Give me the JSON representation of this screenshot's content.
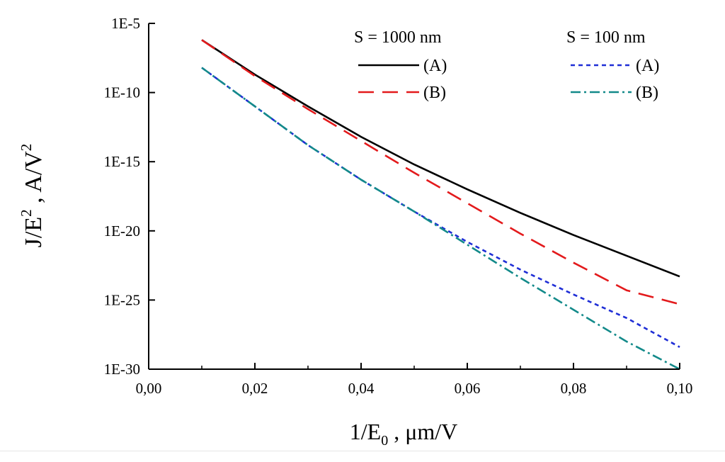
{
  "chart_data": {
    "type": "line",
    "xlabel": "1/E",
    "xlabel_sub": "0",
    "xlabel_unit": " , μm/V",
    "ylabel": "J/E",
    "ylabel_sup": "2",
    "ylabel_unit": " , A/V",
    "ylabel_unit_sup": "2",
    "xlim": [
      0.0,
      0.1
    ],
    "ylim_log10": [
      -30,
      -5
    ],
    "y_scale": "log",
    "x_ticks": [
      0.0,
      0.02,
      0.04,
      0.06,
      0.08,
      0.1
    ],
    "x_tick_labels": [
      "0,00",
      "0,02",
      "0,04",
      "0,06",
      "0,08",
      "0,10"
    ],
    "y_ticks_log10": [
      -5,
      -10,
      -15,
      -20,
      -25,
      -30
    ],
    "y_tick_labels": [
      "1E-5",
      "1E-10",
      "1E-15",
      "1E-20",
      "1E-25",
      "1E-30"
    ],
    "legend": {
      "position": "top-right",
      "group_titles": [
        "S = 1000 nm",
        "S = 100 nm"
      ],
      "entries": [
        {
          "group": "S = 1000 nm",
          "label": "(A)",
          "series": "s1000A"
        },
        {
          "group": "S = 1000 nm",
          "label": "(B)",
          "series": "s1000B"
        },
        {
          "group": "S = 100 nm",
          "label": "(A)",
          "series": "s100A"
        },
        {
          "group": "S = 100 nm",
          "label": "(B)",
          "series": "s100B"
        }
      ]
    },
    "series": [
      {
        "id": "s1000A",
        "name": "S = 1000 nm (A)",
        "color": "#000000",
        "style": "solid",
        "x": [
          0.01,
          0.02,
          0.03,
          0.04,
          0.05,
          0.06,
          0.07,
          0.08,
          0.09,
          0.1
        ],
        "log10_y": [
          -6.2,
          -8.7,
          -11.0,
          -13.2,
          -15.2,
          -17.0,
          -18.7,
          -20.3,
          -21.8,
          -23.3
        ]
      },
      {
        "id": "s1000B",
        "name": "S = 1000 nm (B)",
        "color": "#e31a1c",
        "style": "dashed",
        "x": [
          0.01,
          0.02,
          0.03,
          0.04,
          0.05,
          0.06,
          0.07,
          0.08,
          0.09,
          0.1
        ],
        "log10_y": [
          -6.2,
          -8.8,
          -11.2,
          -13.5,
          -15.8,
          -18.0,
          -20.2,
          -22.3,
          -24.3,
          -25.3
        ]
      },
      {
        "id": "s100A",
        "name": "S = 100 nm (A)",
        "color": "#1f2ed6",
        "style": "dotted",
        "x": [
          0.01,
          0.02,
          0.03,
          0.04,
          0.05,
          0.06,
          0.07,
          0.08,
          0.09,
          0.1
        ],
        "log10_y": [
          -8.2,
          -11.0,
          -13.8,
          -16.3,
          -18.6,
          -20.8,
          -22.8,
          -24.6,
          -26.3,
          -28.4
        ]
      },
      {
        "id": "s100B",
        "name": "S = 100 nm (B)",
        "color": "#138a8a",
        "style": "dashdot",
        "x": [
          0.01,
          0.02,
          0.03,
          0.04,
          0.05,
          0.06,
          0.07,
          0.08,
          0.09,
          0.1
        ],
        "log10_y": [
          -8.2,
          -11.0,
          -13.8,
          -16.3,
          -18.6,
          -21.0,
          -23.4,
          -25.7,
          -28.0,
          -30.0
        ]
      }
    ]
  }
}
